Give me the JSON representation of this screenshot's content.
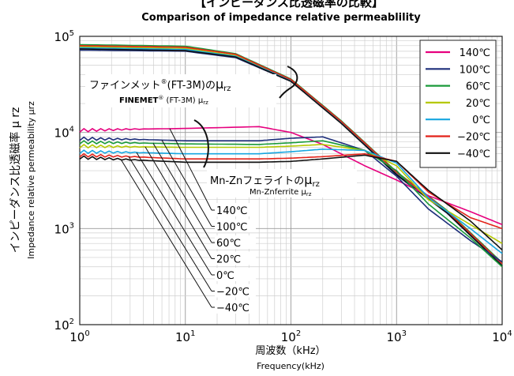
{
  "chart_data": {
    "type": "line",
    "title": "【インピーダンス比透磁率の比較】",
    "subtitle": "Comparison of impedance relative permeablility",
    "xlabel": "周波数（kHz）",
    "xlabel_en": "Frequency(kHz)",
    "ylabel": "インピーダンス比透磁率 μ rz",
    "ylabel_en": "Impedance relative permeability μrz",
    "x_scale": "log",
    "y_scale": "log",
    "xlim": [
      1,
      10000
    ],
    "ylim": [
      100,
      100000
    ],
    "x_ticks": [
      {
        "value": 1,
        "base": "10",
        "exp": "0"
      },
      {
        "value": 10,
        "base": "10",
        "exp": "1"
      },
      {
        "value": 100,
        "base": "10",
        "exp": "2"
      },
      {
        "value": 1000,
        "base": "10",
        "exp": "3"
      },
      {
        "value": 10000,
        "base": "10",
        "exp": "4"
      }
    ],
    "y_ticks": [
      {
        "value": 100,
        "base": "10",
        "exp": "2"
      },
      {
        "value": 1000,
        "base": "10",
        "exp": "3"
      },
      {
        "value": 10000,
        "base": "10",
        "exp": "4"
      },
      {
        "value": 100000,
        "base": "10",
        "exp": "5"
      }
    ],
    "grid": true,
    "legend_position": "top-right",
    "legend": [
      {
        "label": "140℃",
        "color": "#e6007e"
      },
      {
        "label": "100℃",
        "color": "#1d2e7a"
      },
      {
        "label": "60℃",
        "color": "#1a9a3a"
      },
      {
        "label": "20℃",
        "color": "#b5c800"
      },
      {
        "label": "0℃",
        "color": "#16a6e0"
      },
      {
        "label": "−20℃",
        "color": "#e32219"
      },
      {
        "label": "−40℃",
        "color": "#111111"
      }
    ],
    "annotations": {
      "finemet_jp": "ファインメット",
      "finemet_sup": "®",
      "finemet_model": "(FT-3M)の",
      "finemet_mu": "μ",
      "finemet_sub": "rz",
      "finemet_en_name": "FINEMET",
      "finemet_en_sup": "®",
      "finemet_en_model": " (FT-3M)  μ",
      "finemet_en_sub": "rz",
      "mnzn_jp": "Mn-Znフェライトの",
      "mnzn_mu": "μ",
      "mnzn_sub": "rz",
      "mnzn_en": "Mn-Znferrite μ",
      "mnzn_en_sub": "rz",
      "temperature_labels": [
        "140℃",
        "100℃",
        "60℃",
        "20℃",
        "0℃",
        "−20℃",
        "−40℃"
      ]
    },
    "series_finemet": [
      {
        "name": "140℃",
        "color": "#e6007e",
        "points": [
          [
            1,
            75000
          ],
          [
            10,
            72000
          ],
          [
            30,
            62000
          ],
          [
            100,
            35000
          ],
          [
            300,
            13000
          ],
          [
            1000,
            3800
          ],
          [
            3000,
            1500
          ],
          [
            10000,
            430
          ]
        ]
      },
      {
        "name": "100℃",
        "color": "#1d2e7a",
        "points": [
          [
            1,
            72000
          ],
          [
            10,
            70000
          ],
          [
            30,
            60000
          ],
          [
            100,
            34000
          ],
          [
            300,
            12500
          ],
          [
            1000,
            3600
          ],
          [
            3000,
            1450
          ],
          [
            10000,
            410
          ]
        ]
      },
      {
        "name": "60℃",
        "color": "#1a9a3a",
        "points": [
          [
            1,
            82000
          ],
          [
            10,
            79000
          ],
          [
            30,
            66000
          ],
          [
            100,
            36000
          ],
          [
            300,
            13200
          ],
          [
            1000,
            3900
          ],
          [
            3000,
            1550
          ],
          [
            10000,
            440
          ]
        ]
      },
      {
        "name": "20℃",
        "color": "#b5c800",
        "points": [
          [
            1,
            78000
          ],
          [
            10,
            75000
          ],
          [
            30,
            63000
          ],
          [
            100,
            35000
          ],
          [
            300,
            12800
          ],
          [
            1000,
            3750
          ],
          [
            3000,
            1500
          ],
          [
            10000,
            420
          ]
        ]
      },
      {
        "name": "0℃",
        "color": "#16a6e0",
        "points": [
          [
            1,
            76000
          ],
          [
            10,
            73000
          ],
          [
            30,
            62000
          ],
          [
            100,
            34500
          ],
          [
            300,
            12600
          ],
          [
            1000,
            3700
          ],
          [
            3000,
            1480
          ],
          [
            10000,
            415
          ]
        ]
      },
      {
        "name": "−20℃",
        "color": "#e32219",
        "points": [
          [
            1,
            80000
          ],
          [
            10,
            77000
          ],
          [
            30,
            65000
          ],
          [
            100,
            35500
          ],
          [
            300,
            13000
          ],
          [
            1000,
            3850
          ],
          [
            3000,
            1520
          ],
          [
            10000,
            430
          ]
        ]
      },
      {
        "name": "−40℃",
        "color": "#111111",
        "points": [
          [
            1,
            74000
          ],
          [
            10,
            71000
          ],
          [
            30,
            61000
          ],
          [
            100,
            34000
          ],
          [
            300,
            12400
          ],
          [
            1000,
            3650
          ],
          [
            3000,
            1460
          ],
          [
            10000,
            410
          ]
        ]
      }
    ],
    "series_mnzn": [
      {
        "name": "140℃",
        "color": "#e6007e",
        "points": [
          [
            1,
            10500
          ],
          [
            3,
            10800
          ],
          [
            10,
            11000
          ],
          [
            50,
            11500
          ],
          [
            100,
            10000
          ],
          [
            200,
            7500
          ],
          [
            500,
            4500
          ],
          [
            1000,
            3200
          ],
          [
            2000,
            2200
          ],
          [
            5000,
            1500
          ],
          [
            10000,
            1100
          ]
        ]
      },
      {
        "name": "100℃",
        "color": "#1d2e7a",
        "points": [
          [
            1,
            8600
          ],
          [
            3,
            8500
          ],
          [
            10,
            8200
          ],
          [
            50,
            8200
          ],
          [
            100,
            8700
          ],
          [
            200,
            9000
          ],
          [
            500,
            6500
          ],
          [
            1000,
            3500
          ],
          [
            2000,
            1600
          ],
          [
            5000,
            750
          ],
          [
            10000,
            450
          ]
        ]
      },
      {
        "name": "60℃",
        "color": "#1a9a3a",
        "points": [
          [
            1,
            7900
          ],
          [
            3,
            7800
          ],
          [
            10,
            7600
          ],
          [
            50,
            7500
          ],
          [
            100,
            7800
          ],
          [
            200,
            8200
          ],
          [
            500,
            6500
          ],
          [
            1000,
            4000
          ],
          [
            2000,
            1800
          ],
          [
            5000,
            800
          ],
          [
            10000,
            400
          ]
        ]
      },
      {
        "name": "20℃",
        "color": "#b5c800",
        "points": [
          [
            1,
            7200
          ],
          [
            3,
            7100
          ],
          [
            10,
            7000
          ],
          [
            50,
            7000
          ],
          [
            100,
            7200
          ],
          [
            200,
            7500
          ],
          [
            500,
            6500
          ],
          [
            1000,
            4500
          ],
          [
            2000,
            2000
          ],
          [
            5000,
            1100
          ],
          [
            10000,
            700
          ]
        ]
      },
      {
        "name": "0℃",
        "color": "#16a6e0",
        "points": [
          [
            1,
            6300
          ],
          [
            3,
            6200
          ],
          [
            10,
            6000
          ],
          [
            50,
            6000
          ],
          [
            100,
            6300
          ],
          [
            200,
            6700
          ],
          [
            500,
            6500
          ],
          [
            1000,
            4800
          ],
          [
            2000,
            2100
          ],
          [
            5000,
            1000
          ],
          [
            10000,
            550
          ]
        ]
      },
      {
        "name": "−20℃",
        "color": "#e32219",
        "points": [
          [
            1,
            5800
          ],
          [
            3,
            5600
          ],
          [
            10,
            5300
          ],
          [
            50,
            5300
          ],
          [
            100,
            5400
          ],
          [
            200,
            5600
          ],
          [
            500,
            6000
          ],
          [
            1000,
            5000
          ],
          [
            2000,
            2400
          ],
          [
            5000,
            1300
          ],
          [
            10000,
            1000
          ]
        ]
      },
      {
        "name": "−40℃",
        "color": "#111111",
        "points": [
          [
            1,
            5500
          ],
          [
            3,
            5200
          ],
          [
            10,
            4900
          ],
          [
            50,
            4900
          ],
          [
            100,
            5000
          ],
          [
            200,
            5300
          ],
          [
            500,
            5800
          ],
          [
            1000,
            5000
          ],
          [
            2000,
            2500
          ],
          [
            5000,
            1200
          ],
          [
            10000,
            600
          ]
        ]
      }
    ]
  }
}
